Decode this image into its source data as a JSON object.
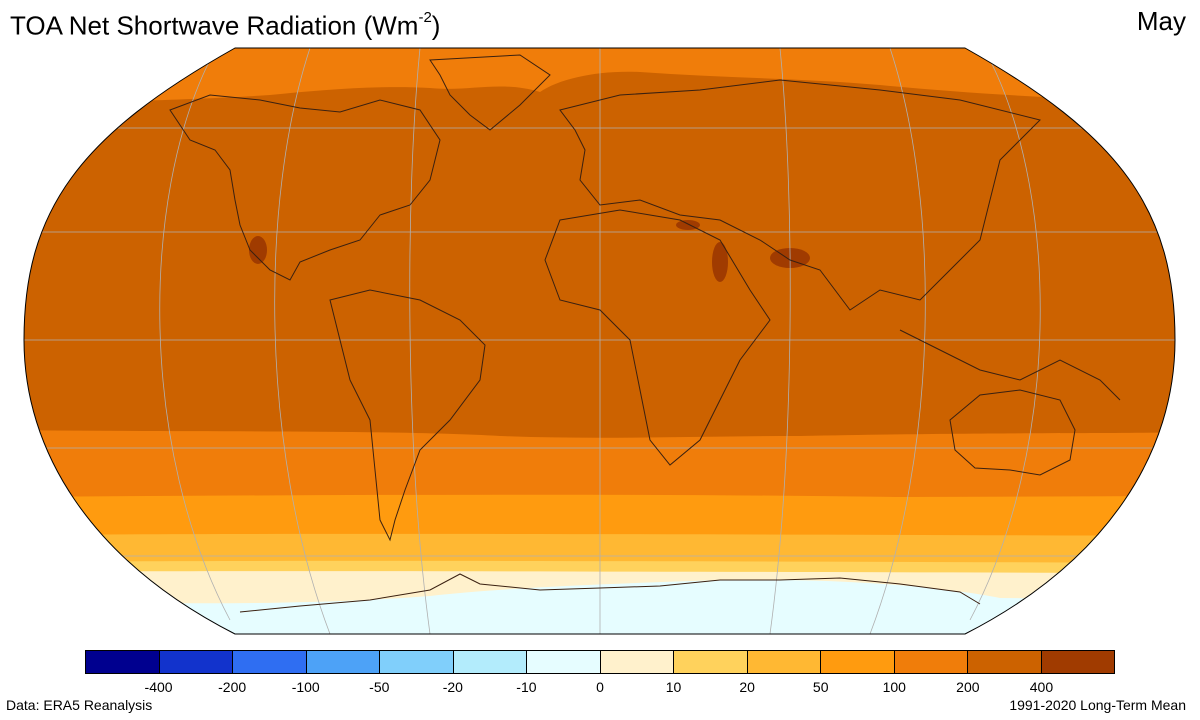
{
  "header": {
    "title_main": "TOA Net Shortwave Radiation (Wm",
    "title_exp": "-2",
    "title_close": ")",
    "month": "May"
  },
  "footer": {
    "source": "Data: ERA5 Reanalysis",
    "period": "1991-2020 Long-Term Mean"
  },
  "colorbar": {
    "colors": [
      "#00008f",
      "#1233cc",
      "#2f6ef2",
      "#4da2f7",
      "#80cffb",
      "#b3ecfc",
      "#e6fdff",
      "#fff1cc",
      "#ffd25c",
      "#ffb833",
      "#ff9b0f",
      "#f07d0a",
      "#cc6200",
      "#a03b00"
    ],
    "labels": [
      "-400",
      "-200",
      "-100",
      "-50",
      "-20",
      "-10",
      "0",
      "10",
      "20",
      "50",
      "100",
      "200",
      "400"
    ]
  },
  "map": {
    "projection": "Robinson",
    "field_bands": [
      {
        "label": "200-400 (tropics and northern hemisphere)",
        "color": "#cc6200"
      },
      {
        "label": "100-200 (northern high latitudes)",
        "color": "#f07d0a"
      },
      {
        "label": "100-200 (southern mid latitudes)",
        "color": "#f07d0a"
      },
      {
        "label": "50-100",
        "color": "#ff9b0f"
      },
      {
        "label": "20-50",
        "color": "#ffb833"
      },
      {
        "label": "10-20",
        "color": "#ffd25c"
      },
      {
        "label": "0-10",
        "color": "#fff1cc"
      },
      {
        "label": "-10-0 (Antarctica)",
        "color": "#e6fdff"
      }
    ],
    "hotspot_color": "#a03b00",
    "coastline_color": "#3a2010",
    "graticule_color": "#b0b0b0"
  }
}
